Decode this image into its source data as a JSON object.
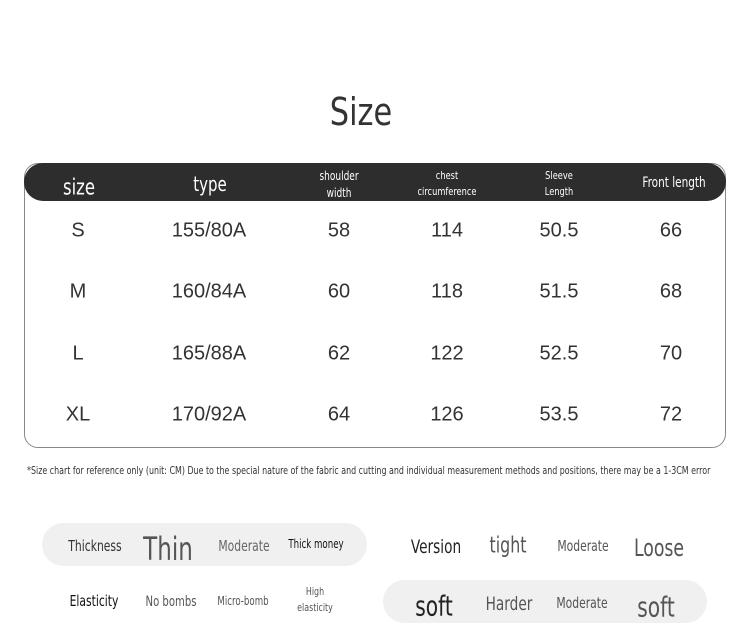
{
  "title": "Size",
  "table": {
    "headers": [
      "size",
      "type",
      "shoulder width",
      "chest circumference",
      "Sleeve Length",
      "Front length"
    ],
    "rows": [
      [
        "S",
        "155/80A",
        "58",
        "114",
        "50.5",
        "66"
      ],
      [
        "M",
        "160/84A",
        "60",
        "118",
        "51.5",
        "68"
      ],
      [
        "L",
        "165/88A",
        "62",
        "122",
        "52.5",
        "70"
      ],
      [
        "XL",
        "170/92A",
        "64",
        "126",
        "53.5",
        "72"
      ]
    ]
  },
  "note": "*Size chart for reference only (unit: CM) Due to the special nature of the fabric and cutting and individual measurement methods and positions, there may be a 1-3CM error",
  "attributes": {
    "thickness": {
      "label": "Thickness",
      "options": [
        "Thin",
        "Moderate",
        "Thick money"
      ],
      "selected": "Thin"
    },
    "version": {
      "label": "Version",
      "options": [
        "tight",
        "Moderate",
        "Loose"
      ]
    },
    "elasticity": {
      "label": "Elasticity",
      "options": [
        "No bombs",
        "Micro-bomb",
        "High elasticity"
      ]
    },
    "softness": {
      "label": "soft",
      "options": [
        "Harder",
        "Moderate",
        "soft"
      ],
      "selected": "soft"
    }
  }
}
